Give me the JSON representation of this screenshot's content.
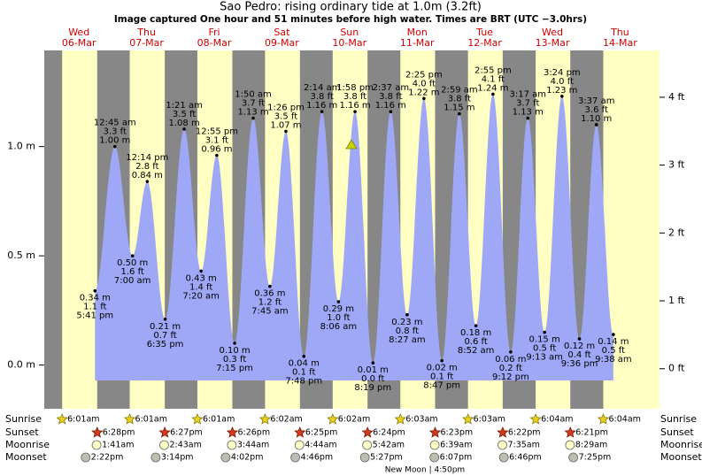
{
  "chart_data": {
    "type": "area",
    "title": "Sao Pedro: rising  ordinary tide at 1.0m (3.2ft)",
    "subtitle": "Image captured One hour and 51 minutes before high water. Times are BRT (UTC −3.0hrs)",
    "color": "#9ea8f6",
    "night_color": "#878787",
    "day_color": "#ffffc4",
    "days": [
      {
        "weekday": "Wed",
        "date": "06-Mar"
      },
      {
        "weekday": "Thu",
        "date": "07-Mar"
      },
      {
        "weekday": "Fri",
        "date": "08-Mar"
      },
      {
        "weekday": "Sat",
        "date": "09-Mar"
      },
      {
        "weekday": "Sun",
        "date": "10-Mar"
      },
      {
        "weekday": "Mon",
        "date": "11-Mar"
      },
      {
        "weekday": "Tue",
        "date": "12-Mar"
      },
      {
        "weekday": "Wed",
        "date": "13-Mar"
      },
      {
        "weekday": "Thu",
        "date": "14-Mar"
      }
    ],
    "ylim": [
      -0.2,
      1.44
    ],
    "yticks": [
      {
        "value": 0,
        "label": "0.0 m"
      },
      {
        "value": 0.5,
        "label": "0.5 m"
      },
      {
        "value": 1,
        "label": "1.0 m"
      }
    ],
    "y2lim": [
      -0.59,
      4.69
    ],
    "y2ticks": [
      {
        "value": 0,
        "label": "0 ft"
      },
      {
        "value": 1,
        "label": "1 ft"
      },
      {
        "value": 2,
        "label": "2 ft"
      },
      {
        "value": 3,
        "label": "3 ft"
      },
      {
        "value": 4,
        "label": "4 ft"
      }
    ],
    "extremes": [
      {
        "date": "06-Mar",
        "time": "5:41 pm",
        "m": 0.34,
        "m_label": "0.34 m",
        "ft": 1.1,
        "ft_label": "1.1 ft"
      },
      {
        "date": "07-Mar",
        "time": "12:45 am",
        "m": 1.0,
        "m_label": "1.00 m",
        "ft": 3.3,
        "ft_label": "3.3 ft"
      },
      {
        "date": "07-Mar",
        "time": "7:00 am",
        "m": 0.5,
        "m_label": "0.50 m",
        "ft": 1.6,
        "ft_label": "1.6 ft"
      },
      {
        "date": "07-Mar",
        "time": "12:14 pm",
        "m": 0.84,
        "m_label": "0.84 m",
        "ft": 2.8,
        "ft_label": "2.8 ft"
      },
      {
        "date": "07-Mar",
        "time": "6:35 pm",
        "m": 0.21,
        "m_label": "0.21 m",
        "ft": 0.7,
        "ft_label": "0.7 ft"
      },
      {
        "date": "08-Mar",
        "time": "1:21 am",
        "m": 1.08,
        "m_label": "1.08 m",
        "ft": 3.5,
        "ft_label": "3.5 ft"
      },
      {
        "date": "08-Mar",
        "time": "7:20 am",
        "m": 0.43,
        "m_label": "0.43 m",
        "ft": 1.4,
        "ft_label": "1.4 ft"
      },
      {
        "date": "08-Mar",
        "time": "12:55 pm",
        "m": 0.96,
        "m_label": "0.96 m",
        "ft": 3.1,
        "ft_label": "3.1 ft"
      },
      {
        "date": "08-Mar",
        "time": "7:15 pm",
        "m": 0.1,
        "m_label": "0.10 m",
        "ft": 0.3,
        "ft_label": "0.3 ft"
      },
      {
        "date": "09-Mar",
        "time": "1:50 am",
        "m": 1.13,
        "m_label": "1.13 m",
        "ft": 3.7,
        "ft_label": "3.7 ft"
      },
      {
        "date": "09-Mar",
        "time": "7:45 am",
        "m": 0.36,
        "m_label": "0.36 m",
        "ft": 1.2,
        "ft_label": "1.2 ft"
      },
      {
        "date": "09-Mar",
        "time": "1:26 pm",
        "m": 1.07,
        "m_label": "1.07 m",
        "ft": 3.5,
        "ft_label": "3.5 ft"
      },
      {
        "date": "09-Mar",
        "time": "7:48 pm",
        "m": 0.04,
        "m_label": "0.04 m",
        "ft": 0.1,
        "ft_label": "0.1 ft"
      },
      {
        "date": "10-Mar",
        "time": "2:14 am",
        "m": 1.16,
        "m_label": "1.16 m",
        "ft": 3.8,
        "ft_label": "3.8 ft"
      },
      {
        "date": "10-Mar",
        "time": "8:06 am",
        "m": 0.29,
        "m_label": "0.29 m",
        "ft": 1.0,
        "ft_label": "1.0 ft"
      },
      {
        "date": "10-Mar",
        "time": "1:58 pm",
        "m": 1.16,
        "m_label": "1.16 m",
        "ft": 3.8,
        "ft_label": "3.8 ft"
      },
      {
        "date": "10-Mar",
        "time": "8:19 pm",
        "m": 0.01,
        "m_label": "0.01 m",
        "ft": 0.0,
        "ft_label": "0.0 ft"
      },
      {
        "date": "11-Mar",
        "time": "2:37 am",
        "m": 1.16,
        "m_label": "1.16 m",
        "ft": 3.8,
        "ft_label": "3.8 ft"
      },
      {
        "date": "11-Mar",
        "time": "8:27 am",
        "m": 0.23,
        "m_label": "0.23 m",
        "ft": 0.8,
        "ft_label": "0.8 ft"
      },
      {
        "date": "11-Mar",
        "time": "2:25 pm",
        "m": 1.22,
        "m_label": "1.22 m",
        "ft": 4.0,
        "ft_label": "4.0 ft"
      },
      {
        "date": "11-Mar",
        "time": "8:47 pm",
        "m": 0.02,
        "m_label": "0.02 m",
        "ft": 0.1,
        "ft_label": "0.1 ft"
      },
      {
        "date": "12-Mar",
        "time": "2:59 am",
        "m": 1.15,
        "m_label": "1.15 m",
        "ft": 3.8,
        "ft_label": "3.8 ft"
      },
      {
        "date": "12-Mar",
        "time": "8:52 am",
        "m": 0.18,
        "m_label": "0.18 m",
        "ft": 0.6,
        "ft_label": "0.6 ft"
      },
      {
        "date": "12-Mar",
        "time": "2:55 pm",
        "m": 1.24,
        "m_label": "1.24 m",
        "ft": 4.1,
        "ft_label": "4.1 ft"
      },
      {
        "date": "12-Mar",
        "time": "9:12 pm",
        "m": 0.06,
        "m_label": "0.06 m",
        "ft": 0.2,
        "ft_label": "0.2 ft"
      },
      {
        "date": "13-Mar",
        "time": "3:17 am",
        "m": 1.13,
        "m_label": "1.13 m",
        "ft": 3.7,
        "ft_label": "3.7 ft"
      },
      {
        "date": "13-Mar",
        "time": "9:13 am",
        "m": 0.15,
        "m_label": "0.15 m",
        "ft": 0.5,
        "ft_label": "0.5 ft"
      },
      {
        "date": "13-Mar",
        "time": "3:24 pm",
        "m": 1.23,
        "m_label": "1.23 m",
        "ft": 4.0,
        "ft_label": "4.0 ft"
      },
      {
        "date": "13-Mar",
        "time": "9:36 pm",
        "m": 0.12,
        "m_label": "0.12 m",
        "ft": 0.4,
        "ft_label": "0.4 ft"
      },
      {
        "date": "14-Mar",
        "time": "3:37 am",
        "m": 1.1,
        "m_label": "1.10 m",
        "ft": 3.6,
        "ft_label": "3.6 ft"
      },
      {
        "date": "14-Mar",
        "time": "9:38 am",
        "m": 0.14,
        "m_label": "0.14 m",
        "ft": 0.5,
        "ft_label": "0.5 ft"
      }
    ],
    "rows": [
      {
        "label": "Sunrise",
        "events": [
          {
            "date": "06-Mar",
            "time": "6:01am"
          },
          {
            "date": "07-Mar",
            "time": "6:01am"
          },
          {
            "date": "08-Mar",
            "time": "6:01am"
          },
          {
            "date": "09-Mar",
            "time": "6:02am"
          },
          {
            "date": "10-Mar",
            "time": "6:02am"
          },
          {
            "date": "11-Mar",
            "time": "6:03am"
          },
          {
            "date": "12-Mar",
            "time": "6:03am"
          },
          {
            "date": "13-Mar",
            "time": "6:04am"
          },
          {
            "date": "14-Mar",
            "time": "6:04am"
          }
        ]
      },
      {
        "label": "Sunset",
        "events": [
          {
            "date": "06-Mar",
            "time": "6:28pm"
          },
          {
            "date": "07-Mar",
            "time": "6:27pm"
          },
          {
            "date": "08-Mar",
            "time": "6:26pm"
          },
          {
            "date": "09-Mar",
            "time": "6:25pm"
          },
          {
            "date": "10-Mar",
            "time": "6:24pm"
          },
          {
            "date": "11-Mar",
            "time": "6:23pm"
          },
          {
            "date": "12-Mar",
            "time": "6:22pm"
          },
          {
            "date": "13-Mar",
            "time": "6:21pm"
          }
        ]
      },
      {
        "label": "Moonrise",
        "events": [
          {
            "date": "06-Mar",
            "time": "1:41am"
          },
          {
            "date": "07-Mar",
            "time": "2:43am"
          },
          {
            "date": "08-Mar",
            "time": "3:44am"
          },
          {
            "date": "09-Mar",
            "time": "4:44am"
          },
          {
            "date": "10-Mar",
            "time": "5:42am"
          },
          {
            "date": "11-Mar",
            "time": "6:39am"
          },
          {
            "date": "12-Mar",
            "time": "7:35am"
          },
          {
            "date": "13-Mar",
            "time": "8:29am"
          }
        ]
      },
      {
        "label": "Moonset",
        "events": [
          {
            "date": "06-Mar",
            "time": "2:22pm"
          },
          {
            "date": "07-Mar",
            "time": "3:14pm"
          },
          {
            "date": "08-Mar",
            "time": "4:02pm"
          },
          {
            "date": "09-Mar",
            "time": "4:46pm"
          },
          {
            "date": "10-Mar",
            "time": "5:27pm"
          },
          {
            "date": "11-Mar",
            "time": "6:07pm"
          },
          {
            "date": "12-Mar",
            "time": "6:46pm"
          },
          {
            "date": "13-Mar",
            "time": "7:25pm"
          }
        ]
      }
    ],
    "moon_phase": "New Moon | 4:50pm"
  }
}
